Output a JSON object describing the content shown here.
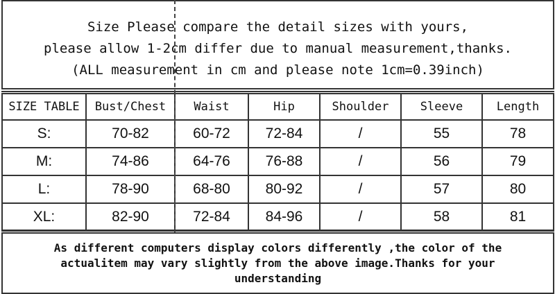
{
  "header_note": [
    "Size Please compare the detail sizes with yours,",
    "please allow 1-2cm differ due to manual measurement,thanks.",
    "(ALL measurement in cm and please note 1cm=0.39inch)"
  ],
  "table": {
    "columns": [
      "SIZE TABLE",
      "Bust/Chest",
      "Waist",
      "Hip",
      "Shoulder",
      "Sleeve",
      "Length"
    ],
    "rows": [
      [
        "S:",
        "70-82",
        "60-72",
        "72-84",
        "/",
        "55",
        "78"
      ],
      [
        "M:",
        "74-86",
        "64-76",
        "76-88",
        "/",
        "56",
        "79"
      ],
      [
        "L:",
        "78-90",
        "68-80",
        "80-92",
        "/",
        "57",
        "80"
      ],
      [
        "XL:",
        "82-90",
        "72-84",
        "84-96",
        "/",
        "58",
        "81"
      ]
    ]
  },
  "footer_note": [
    "As different computers display colors differently ,the color of the",
    "actualitem may vary slightly from the above image.Thanks for your",
    "understanding"
  ]
}
